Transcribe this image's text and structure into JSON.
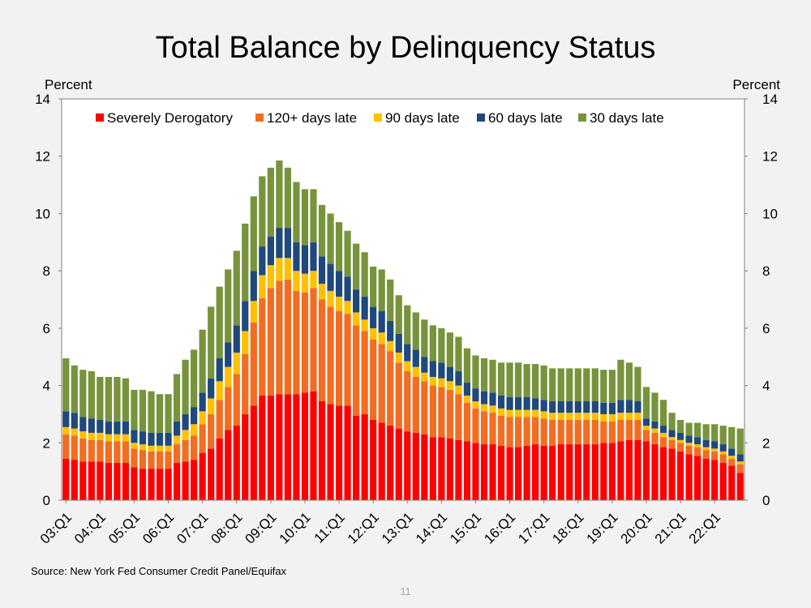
{
  "page": {
    "source": "Source: New York Fed Consumer Credit Panel/Equifax",
    "page_number": "11"
  },
  "chart_data": {
    "type": "bar",
    "stacked": true,
    "title": "Total Balance by Delinquency Status",
    "ylabel_left": "Percent",
    "ylabel_right": "Percent",
    "ylim": [
      0,
      14
    ],
    "yticks": [
      0,
      2,
      4,
      6,
      8,
      10,
      12,
      14
    ],
    "x_tick_labels": [
      "03:Q1",
      "04:Q1",
      "05:Q1",
      "06:Q1",
      "07:Q1",
      "08:Q1",
      "09:Q1",
      "10:Q1",
      "11:Q1",
      "12:Q1",
      "13:Q1",
      "14:Q1",
      "15:Q1",
      "16:Q1",
      "17:Q1",
      "18:Q1",
      "19:Q1",
      "20:Q1",
      "21:Q1",
      "22:Q1"
    ],
    "legend_position": "top",
    "n_quarters": 80,
    "series": [
      {
        "name": "Severely Derogatory",
        "color": "#ff0000",
        "values": [
          1.45,
          1.4,
          1.35,
          1.35,
          1.35,
          1.3,
          1.3,
          1.3,
          1.15,
          1.1,
          1.1,
          1.1,
          1.1,
          1.3,
          1.35,
          1.4,
          1.65,
          1.8,
          2.15,
          2.45,
          2.6,
          3.0,
          3.3,
          3.65,
          3.65,
          3.7,
          3.7,
          3.7,
          3.75,
          3.8,
          3.45,
          3.35,
          3.3,
          3.3,
          2.95,
          3.0,
          2.8,
          2.7,
          2.6,
          2.5,
          2.4,
          2.35,
          2.3,
          2.2,
          2.2,
          2.15,
          2.1,
          2.05,
          2.0,
          1.95,
          1.95,
          1.9,
          1.85,
          1.85,
          1.9,
          1.95,
          1.9,
          1.9,
          1.95,
          1.95,
          1.95,
          1.95,
          1.95,
          2.0,
          2.0,
          2.05,
          2.1,
          2.1,
          2.05,
          1.95,
          1.85,
          1.8,
          1.7,
          1.6,
          1.55,
          1.45,
          1.4,
          1.3,
          1.2,
          0.95
        ]
      },
      {
        "name": "120+ days late",
        "color": "#f26d21",
        "values": [
          0.85,
          0.85,
          0.8,
          0.75,
          0.75,
          0.75,
          0.75,
          0.75,
          0.65,
          0.65,
          0.6,
          0.6,
          0.6,
          0.65,
          0.75,
          0.85,
          1.0,
          1.2,
          1.35,
          1.5,
          1.8,
          2.1,
          2.9,
          3.4,
          3.75,
          3.95,
          4.0,
          3.6,
          3.5,
          3.6,
          3.55,
          3.4,
          3.3,
          3.2,
          3.15,
          2.9,
          2.8,
          2.75,
          2.6,
          2.3,
          2.1,
          1.95,
          1.85,
          1.8,
          1.75,
          1.7,
          1.6,
          1.35,
          1.2,
          1.15,
          1.1,
          1.05,
          1.05,
          1.05,
          1.0,
          0.95,
          0.95,
          0.9,
          0.85,
          0.85,
          0.85,
          0.85,
          0.85,
          0.75,
          0.75,
          0.75,
          0.7,
          0.7,
          0.4,
          0.4,
          0.35,
          0.3,
          0.3,
          0.3,
          0.3,
          0.3,
          0.3,
          0.3,
          0.25,
          0.3
        ]
      },
      {
        "name": "90 days late",
        "color": "#ffc000",
        "values": [
          0.25,
          0.25,
          0.25,
          0.25,
          0.25,
          0.25,
          0.25,
          0.25,
          0.2,
          0.2,
          0.2,
          0.2,
          0.2,
          0.3,
          0.35,
          0.4,
          0.45,
          0.55,
          0.65,
          0.7,
          0.75,
          0.8,
          0.75,
          0.8,
          0.8,
          0.8,
          0.75,
          0.7,
          0.65,
          0.6,
          0.55,
          0.55,
          0.5,
          0.45,
          0.45,
          0.4,
          0.4,
          0.4,
          0.35,
          0.35,
          0.35,
          0.35,
          0.3,
          0.3,
          0.3,
          0.3,
          0.3,
          0.25,
          0.25,
          0.25,
          0.25,
          0.25,
          0.25,
          0.25,
          0.25,
          0.25,
          0.25,
          0.25,
          0.25,
          0.25,
          0.25,
          0.25,
          0.25,
          0.25,
          0.25,
          0.25,
          0.25,
          0.25,
          0.15,
          0.15,
          0.15,
          0.1,
          0.1,
          0.1,
          0.1,
          0.1,
          0.1,
          0.1,
          0.1,
          0.1
        ]
      },
      {
        "name": "60 days late",
        "color": "#1f497d",
        "values": [
          0.55,
          0.55,
          0.5,
          0.5,
          0.45,
          0.45,
          0.45,
          0.45,
          0.45,
          0.45,
          0.45,
          0.45,
          0.45,
          0.5,
          0.55,
          0.6,
          0.65,
          0.7,
          0.8,
          0.85,
          0.95,
          1.05,
          1.05,
          1.0,
          1.0,
          1.05,
          1.05,
          1.0,
          1.0,
          1.0,
          0.95,
          0.95,
          0.9,
          0.85,
          0.8,
          0.8,
          0.75,
          0.75,
          0.7,
          0.65,
          0.6,
          0.6,
          0.55,
          0.55,
          0.55,
          0.5,
          0.5,
          0.45,
          0.45,
          0.45,
          0.45,
          0.45,
          0.45,
          0.45,
          0.45,
          0.4,
          0.4,
          0.4,
          0.4,
          0.4,
          0.4,
          0.4,
          0.4,
          0.4,
          0.4,
          0.45,
          0.45,
          0.4,
          0.25,
          0.25,
          0.25,
          0.25,
          0.25,
          0.25,
          0.25,
          0.25,
          0.25,
          0.25,
          0.25,
          0.25
        ]
      },
      {
        "name": "30 days late",
        "color": "#77933c",
        "values": [
          1.85,
          1.65,
          1.65,
          1.65,
          1.5,
          1.55,
          1.55,
          1.5,
          1.4,
          1.45,
          1.45,
          1.35,
          1.35,
          1.65,
          1.9,
          2.0,
          2.2,
          2.5,
          2.5,
          2.55,
          2.6,
          2.7,
          2.6,
          2.45,
          2.4,
          2.35,
          2.1,
          2.1,
          1.95,
          1.85,
          1.8,
          1.75,
          1.7,
          1.6,
          1.6,
          1.55,
          1.4,
          1.45,
          1.45,
          1.35,
          1.35,
          1.3,
          1.3,
          1.25,
          1.2,
          1.2,
          1.2,
          1.2,
          1.15,
          1.15,
          1.15,
          1.15,
          1.2,
          1.2,
          1.15,
          1.2,
          1.2,
          1.15,
          1.15,
          1.15,
          1.15,
          1.15,
          1.15,
          1.15,
          1.15,
          1.4,
          1.3,
          1.2,
          1.1,
          1.0,
          0.9,
          0.6,
          0.45,
          0.45,
          0.5,
          0.55,
          0.6,
          0.65,
          0.75,
          0.9
        ]
      }
    ]
  }
}
